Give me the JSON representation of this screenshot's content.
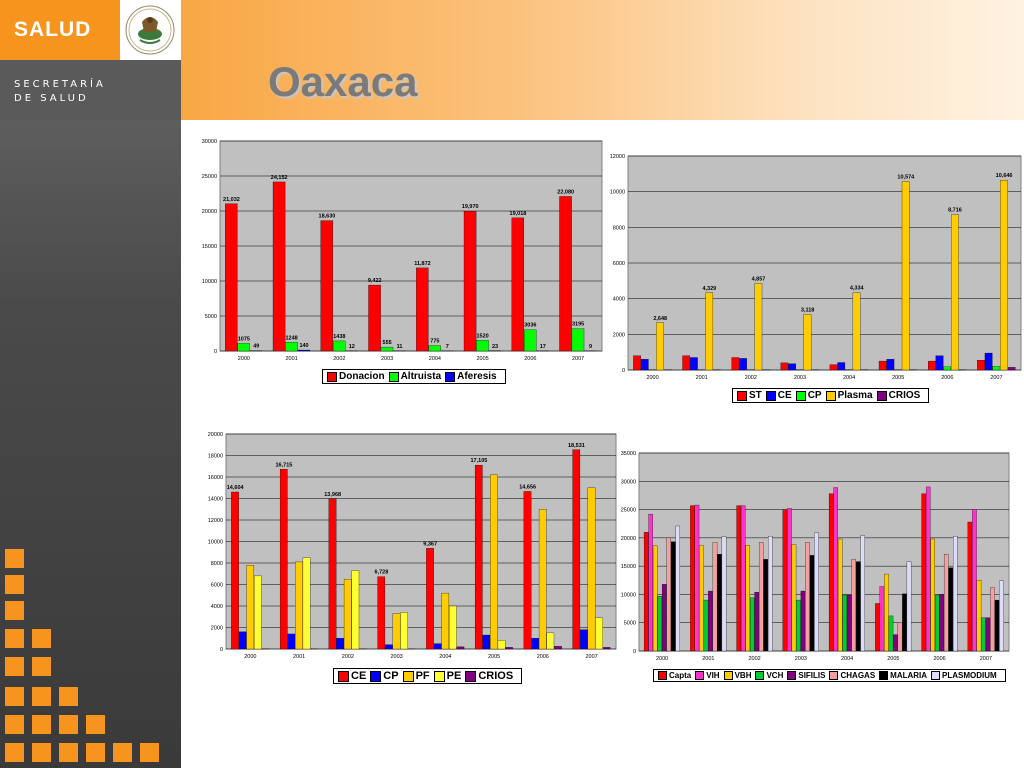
{
  "brand": {
    "name": "SALUD",
    "subtitle_line1": "SECRETARÍA",
    "subtitle_line2": "DE SALUD",
    "accent": "#f7941d"
  },
  "page": {
    "title": "Oaxaca"
  },
  "chart_data": [
    {
      "type": "bar",
      "categories": [
        "2000",
        "2001",
        "2002",
        "2003",
        "2004",
        "2005",
        "2006",
        "2007"
      ],
      "ylim": [
        0,
        30000
      ],
      "yticks": [
        "0",
        "5000",
        "10000",
        "15000",
        "20000",
        "25000",
        "30000"
      ],
      "grid": true,
      "legend_position": "bottom",
      "series": [
        {
          "name": "Donacion",
          "color": "#ff0000",
          "values": [
            21032,
            24152,
            18630,
            9422,
            11872,
            19970,
            19018,
            22080
          ],
          "labels": [
            "21,032",
            "24,152",
            "18,630",
            "9,422",
            "11,872",
            "19,970",
            "19,018",
            "22,080"
          ]
        },
        {
          "name": "Altruista",
          "color": "#00ff00",
          "values": [
            1075,
            1248,
            1438,
            555,
            775,
            1520,
            3036,
            3195
          ],
          "labels": [
            "1075",
            "1248",
            "1438",
            "555",
            "775",
            "1520",
            "3036",
            "3195"
          ]
        },
        {
          "name": "Aferesis",
          "color": "#0000ff",
          "values": [
            49,
            140,
            12,
            11,
            7,
            23,
            17,
            9
          ],
          "labels": [
            "49",
            "140",
            "12",
            "11",
            "7",
            "23",
            "17",
            "9"
          ]
        }
      ]
    },
    {
      "type": "bar",
      "categories": [
        "2000",
        "2001",
        "2002",
        "2003",
        "2004",
        "2005",
        "2006",
        "2007"
      ],
      "ylim": [
        0,
        12000
      ],
      "yticks": [
        "0",
        "2000",
        "4000",
        "6000",
        "8000",
        "10000",
        "12000"
      ],
      "grid": true,
      "legend_position": "bottom",
      "series": [
        {
          "name": "ST",
          "color": "#ff0000",
          "values": [
            800,
            800,
            700,
            400,
            300,
            500,
            500,
            550
          ]
        },
        {
          "name": "CE",
          "color": "#0000ff",
          "values": [
            600,
            700,
            650,
            350,
            420,
            600,
            800,
            950
          ]
        },
        {
          "name": "CP",
          "color": "#00ff00",
          "values": [
            10,
            10,
            10,
            10,
            10,
            10,
            180,
            200
          ]
        },
        {
          "name": "Plasma",
          "color": "#ffcc00",
          "values": [
            2648,
            4329,
            4857,
            3118,
            4334,
            10574,
            8716,
            10646
          ],
          "labels": [
            "2,648",
            "4,329",
            "4,857",
            "3,118",
            "4,334",
            "10,574",
            "8,716",
            "10,646"
          ]
        },
        {
          "name": "CRIOS",
          "color": "#800080",
          "values": [
            10,
            10,
            10,
            10,
            10,
            10,
            10,
            150
          ]
        }
      ]
    },
    {
      "type": "bar",
      "categories": [
        "2000",
        "2001",
        "2002",
        "2003",
        "2004",
        "2005",
        "2006",
        "2007"
      ],
      "ylim": [
        0,
        20000
      ],
      "yticks": [
        "0",
        "2000",
        "4000",
        "6000",
        "8000",
        "10000",
        "12000",
        "14000",
        "16000",
        "18000",
        "20000"
      ],
      "grid": true,
      "legend_position": "bottom",
      "series": [
        {
          "name": "CE",
          "color": "#ff0000",
          "values": [
            14604,
            16715,
            13968,
            6728,
            9367,
            17105,
            14656,
            18531
          ],
          "labels": [
            "14,604",
            "16,715",
            "13,968",
            "6,728",
            "9,367",
            "17,105",
            "14,656",
            "18,531"
          ]
        },
        {
          "name": "CP",
          "color": "#0000ff",
          "values": [
            1600,
            1400,
            1000,
            400,
            500,
            1300,
            1000,
            1800
          ]
        },
        {
          "name": "PF",
          "color": "#ffcc00",
          "values": [
            7800,
            8100,
            6500,
            3300,
            5200,
            16200,
            13000,
            15000
          ]
        },
        {
          "name": "PE",
          "color": "#ffff33",
          "values": [
            6800,
            8500,
            7300,
            3400,
            4000,
            800,
            1500,
            2900
          ]
        },
        {
          "name": "CRIOS",
          "color": "#800080",
          "values": [
            10,
            10,
            10,
            10,
            200,
            150,
            250,
            150
          ]
        }
      ]
    },
    {
      "type": "bar",
      "categories": [
        "2000",
        "2001",
        "2002",
        "2003",
        "2004",
        "2005",
        "2006",
        "2007"
      ],
      "ylim": [
        0,
        35000
      ],
      "yticks": [
        "0",
        "5000",
        "10000",
        "15000",
        "20000",
        "25000",
        "30000",
        "35000"
      ],
      "grid": true,
      "legend_position": "bottom",
      "series": [
        {
          "name": "Capta",
          "color": "#ff0000",
          "values": [
            21000,
            25700,
            25700,
            25000,
            27800,
            8400,
            27800,
            22800
          ]
        },
        {
          "name": "VIH",
          "color": "#ff33cc",
          "values": [
            24200,
            25800,
            25700,
            25200,
            28900,
            11400,
            29000,
            25000
          ]
        },
        {
          "name": "VBH",
          "color": "#ffcc00",
          "values": [
            18600,
            18600,
            18700,
            18800,
            19800,
            13600,
            19800,
            12500
          ]
        },
        {
          "name": "VCH",
          "color": "#00cc33",
          "values": [
            9700,
            9000,
            9400,
            9000,
            9900,
            6200,
            9900,
            5900
          ]
        },
        {
          "name": "SIFILIS",
          "color": "#800080",
          "values": [
            11800,
            10600,
            10400,
            10600,
            9900,
            2900,
            10000,
            5900
          ]
        },
        {
          "name": "CHAGAS",
          "color": "#f4a0a0",
          "values": [
            20000,
            19200,
            19200,
            19200,
            16200,
            5000,
            17100,
            11200
          ]
        },
        {
          "name": "MALARIA",
          "color": "#000000",
          "values": [
            19300,
            17100,
            16200,
            16900,
            15800,
            10100,
            14700,
            9000
          ]
        },
        {
          "name": "PLASMODIUM",
          "color": "#dcdcf8",
          "values": [
            22100,
            20200,
            20300,
            20900,
            20400,
            15800,
            20300,
            12400
          ]
        }
      ]
    }
  ]
}
